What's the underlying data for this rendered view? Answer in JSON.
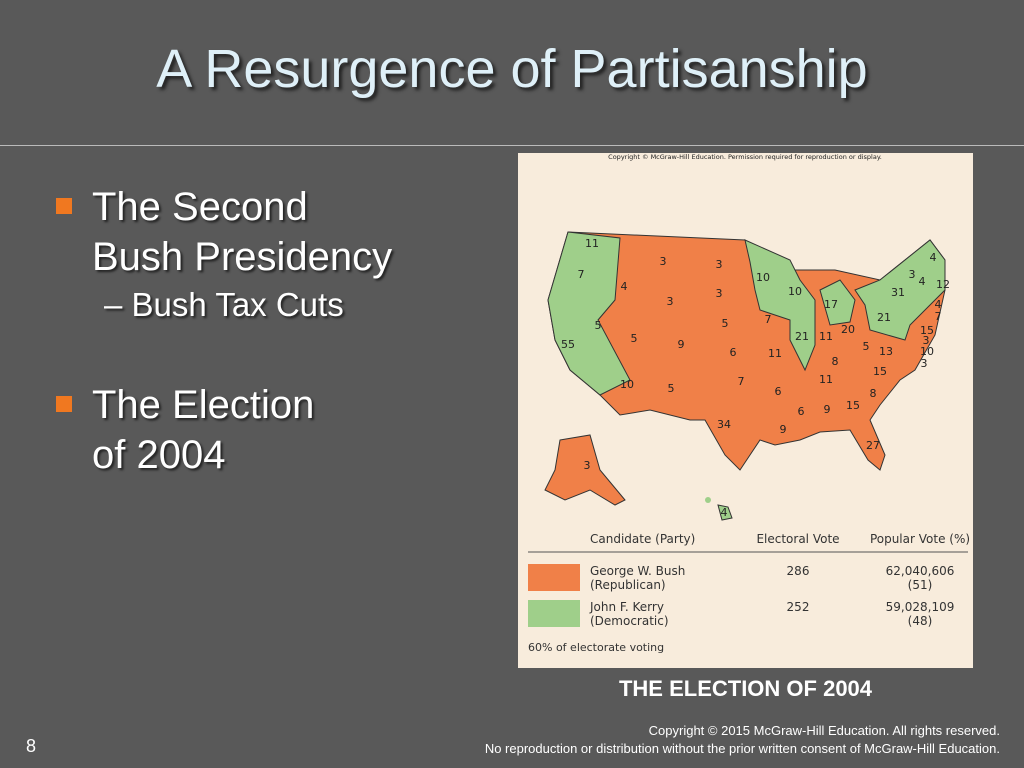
{
  "title": "A Resurgence of Partisanship",
  "bullets": [
    {
      "lines": [
        "The Second",
        "Bush Presidency"
      ],
      "sub": [
        "Bush Tax Cuts"
      ]
    },
    {
      "lines": [
        "The Election",
        "of 2004"
      ]
    }
  ],
  "map": {
    "copyright": "Copyright © McGraw-Hill Education. Permission required for reproduction or display.",
    "states": [
      {
        "votes": "11",
        "color": "#9fcf8a"
      },
      {
        "votes": "7",
        "color": "#9fcf8a"
      },
      {
        "votes": "55",
        "color": "#9fcf8a"
      },
      {
        "votes": "4",
        "color": "#f08048"
      },
      {
        "votes": "3",
        "color": "#f08048"
      },
      {
        "votes": "3",
        "color": "#f08048"
      },
      {
        "votes": "5",
        "color": "#f08048"
      },
      {
        "votes": "5",
        "color": "#f08048"
      },
      {
        "votes": "9",
        "color": "#f08048"
      },
      {
        "votes": "10",
        "color": "#f08048"
      },
      {
        "votes": "5",
        "color": "#f08048"
      },
      {
        "votes": "3",
        "color": "#f08048"
      },
      {
        "votes": "3",
        "color": "#f08048"
      },
      {
        "votes": "5",
        "color": "#f08048"
      },
      {
        "votes": "6",
        "color": "#f08048"
      },
      {
        "votes": "7",
        "color": "#f08048"
      },
      {
        "votes": "34",
        "color": "#f08048"
      },
      {
        "votes": "10",
        "color": "#9fcf8a"
      },
      {
        "votes": "7",
        "color": "#f08048"
      },
      {
        "votes": "11",
        "color": "#f08048"
      },
      {
        "votes": "6",
        "color": "#f08048"
      },
      {
        "votes": "9",
        "color": "#f08048"
      },
      {
        "votes": "10",
        "color": "#9fcf8a"
      },
      {
        "votes": "21",
        "color": "#9fcf8a"
      },
      {
        "votes": "17",
        "color": "#9fcf8a"
      },
      {
        "votes": "11",
        "color": "#f08048"
      },
      {
        "votes": "20",
        "color": "#f08048"
      },
      {
        "votes": "8",
        "color": "#f08048"
      },
      {
        "votes": "11",
        "color": "#f08048"
      },
      {
        "votes": "6",
        "color": "#f08048"
      },
      {
        "votes": "9",
        "color": "#f08048"
      },
      {
        "votes": "15",
        "color": "#f08048"
      },
      {
        "votes": "27",
        "color": "#f08048"
      },
      {
        "votes": "8",
        "color": "#f08048"
      },
      {
        "votes": "15",
        "color": "#f08048"
      },
      {
        "votes": "13",
        "color": "#f08048"
      },
      {
        "votes": "5",
        "color": "#f08048"
      },
      {
        "votes": "21",
        "color": "#9fcf8a"
      },
      {
        "votes": "31",
        "color": "#9fcf8a"
      },
      {
        "votes": "4",
        "color": "#9fcf8a"
      },
      {
        "votes": "3",
        "color": "#9fcf8a"
      },
      {
        "votes": "4",
        "color": "#9fcf8a"
      },
      {
        "votes": "12",
        "color": "#9fcf8a"
      },
      {
        "votes": "4",
        "color": "#9fcf8a"
      },
      {
        "votes": "7",
        "color": "#9fcf8a"
      },
      {
        "votes": "15",
        "color": "#9fcf8a"
      },
      {
        "votes": "3",
        "color": "#9fcf8a"
      },
      {
        "votes": "10",
        "color": "#9fcf8a"
      },
      {
        "votes": "3",
        "color": "#9fcf8a"
      },
      {
        "votes": "3",
        "color": "#f08048"
      },
      {
        "votes": "4",
        "color": "#9fcf8a"
      }
    ],
    "legend": {
      "headers": [
        "Candidate (Party)",
        "Electoral Vote",
        "Popular Vote (%)"
      ],
      "rows": [
        {
          "color": "#f08048",
          "candidate": [
            "George W. Bush",
            "(Republican)"
          ],
          "electoral": "286",
          "popular": [
            "62,040,606",
            "(51)"
          ]
        },
        {
          "color": "#9fcf8a",
          "candidate": [
            "John F. Kerry",
            "(Democratic)"
          ],
          "electoral": "252",
          "popular": [
            "59,028,109",
            "(48)"
          ]
        }
      ],
      "note": "60% of electorate voting"
    }
  },
  "caption": "THE ELECTION OF 2004",
  "footer": [
    "Copyright © 2015 McGraw-Hill Education. All rights reserved.",
    "No reproduction or distribution without the prior written consent of McGraw-Hill Education."
  ],
  "slide_number": "8"
}
